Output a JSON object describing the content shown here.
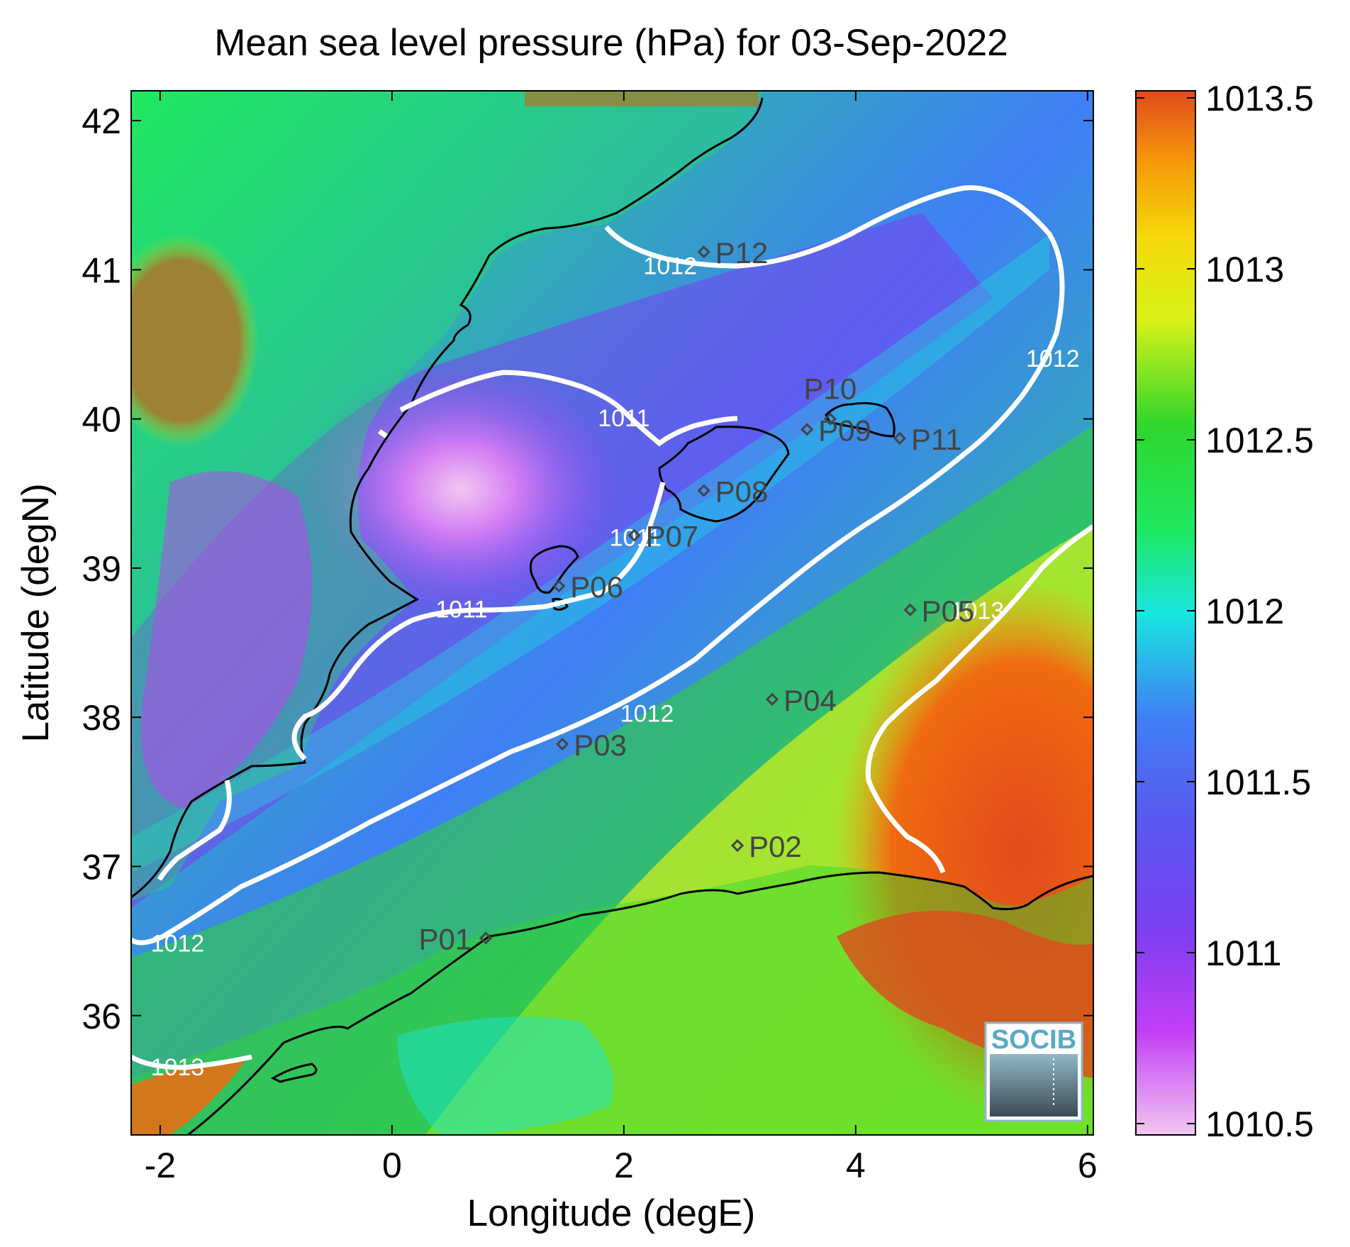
{
  "title": "Mean sea level pressure (hPa) for 03-Sep-2022",
  "xlabel": "Longitude (degE)",
  "ylabel": "Latitude (degN)",
  "x_ticks": [
    "-2",
    "0",
    "2",
    "4",
    "6"
  ],
  "y_ticks": [
    "36",
    "37",
    "38",
    "39",
    "40",
    "41",
    "42"
  ],
  "colorbar": {
    "ticks": [
      "1010.5",
      "1011",
      "1011.5",
      "1012",
      "1012.5",
      "1013",
      "1013.5"
    ],
    "colors": [
      "#f2c7f0",
      "#c23df6",
      "#7a3ff0",
      "#3f7ff5",
      "#19e6e0",
      "#1fe860",
      "#2fd62c",
      "#d7f218",
      "#f5d80b",
      "#f59a08",
      "#f06a10",
      "#e04a1c"
    ]
  },
  "logo": "SOCIB",
  "chart_data": {
    "type": "heatmap",
    "title": "Mean sea level pressure (hPa) for 03-Sep-2022",
    "xlabel": "Longitude (degE)",
    "ylabel": "Latitude (degN)",
    "xlim": [
      -2.25,
      6.05
    ],
    "ylim": [
      35.2,
      42.2
    ],
    "clim": [
      1010.5,
      1013.5
    ],
    "contours": [
      {
        "level": "1011",
        "labels": [
          {
            "text": "1011",
            "lon": 2.0,
            "lat": 39.95
          },
          {
            "text": "1011",
            "lon": 0.6,
            "lat": 38.67
          },
          {
            "text": "1011",
            "lon": 2.1,
            "lat": 39.15
          }
        ]
      },
      {
        "level": "1012",
        "labels": [
          {
            "text": "1012",
            "lon": 2.4,
            "lat": 40.97
          },
          {
            "text": "1012",
            "lon": 5.7,
            "lat": 40.35
          },
          {
            "text": "1012",
            "lon": 2.2,
            "lat": 37.97
          },
          {
            "text": "1012",
            "lon": -1.85,
            "lat": 36.43
          }
        ]
      },
      {
        "level": "1013",
        "labels": [
          {
            "text": "1013",
            "lon": 5.05,
            "lat": 38.66
          },
          {
            "text": "1013",
            "lon": -1.85,
            "lat": 35.6
          }
        ]
      }
    ],
    "points": [
      {
        "label": "P01",
        "lon": 0.81,
        "lat": 36.52
      },
      {
        "label": "P02",
        "lon": 2.98,
        "lat": 37.14
      },
      {
        "label": "P03",
        "lon": 1.47,
        "lat": 37.82
      },
      {
        "label": "P04",
        "lon": 3.28,
        "lat": 38.12
      },
      {
        "label": "P05",
        "lon": 4.47,
        "lat": 38.72
      },
      {
        "label": "P06",
        "lon": 1.44,
        "lat": 38.88
      },
      {
        "label": "P07",
        "lon": 2.09,
        "lat": 39.22
      },
      {
        "label": "P08",
        "lon": 2.69,
        "lat": 39.52
      },
      {
        "label": "P09",
        "lon": 3.58,
        "lat": 39.93
      },
      {
        "label": "P10",
        "lon": 3.78,
        "lat": 40.0
      },
      {
        "label": "P11",
        "lon": 4.38,
        "lat": 39.87
      },
      {
        "label": "P12",
        "lon": 2.69,
        "lat": 41.12
      }
    ]
  }
}
